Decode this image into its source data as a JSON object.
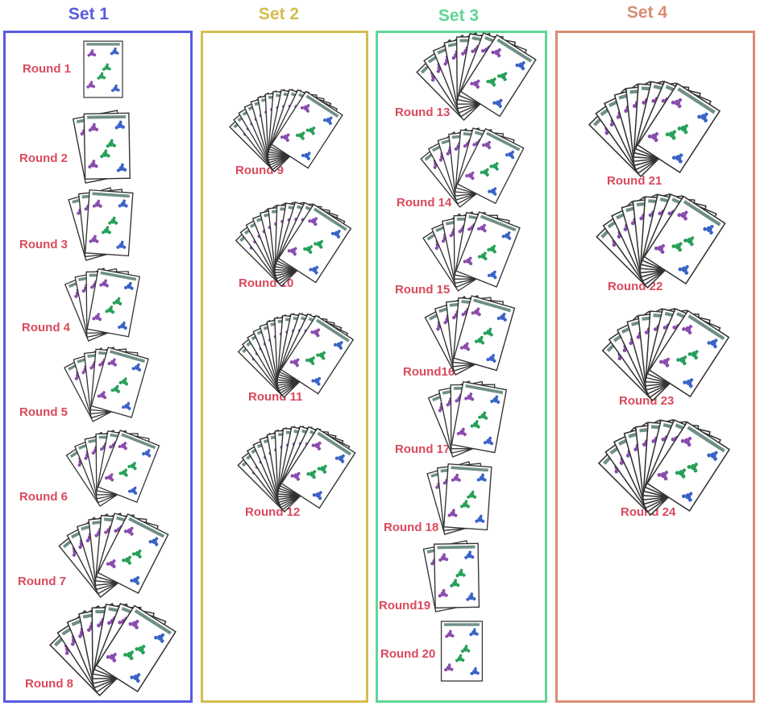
{
  "colors": {
    "label": "#d94a5c",
    "card_border": "#333333",
    "card_fill": "#ffffff",
    "card_strip": "#6f8f86",
    "purple": "#8a4cae",
    "blue": "#3a63c8",
    "green": "#27a05a"
  },
  "sets": [
    {
      "title": "Set 1",
      "color": "#5a5ae0",
      "rounds": [
        {
          "label": "Round  1",
          "cards": 1
        },
        {
          "label": "Round  2",
          "cards": 2
        },
        {
          "label": "Round  3",
          "cards": 3
        },
        {
          "label": "Round  4",
          "cards": 4
        },
        {
          "label": "Round 5",
          "cards": 5
        },
        {
          "label": "Round  6",
          "cards": 6
        },
        {
          "label": "Round 7",
          "cards": 7
        },
        {
          "label": "Round 8",
          "cards": 8
        }
      ]
    },
    {
      "title": "Set 2",
      "color": "#d4bd4e",
      "rounds": [
        {
          "label": "Round 9",
          "cards": 12
        },
        {
          "label": "Round 10",
          "cards": 11
        },
        {
          "label": "Round 11",
          "cards": 12
        },
        {
          "label": "Round 12",
          "cards": 12
        }
      ]
    },
    {
      "title": "Set 3",
      "color": "#5fd696",
      "rounds": [
        {
          "label": "Round 13",
          "cards": 8
        },
        {
          "label": "Round 14",
          "cards": 7
        },
        {
          "label": "Round 15",
          "cards": 6
        },
        {
          "label": "Round16",
          "cards": 5
        },
        {
          "label": "Round 17",
          "cards": 4
        },
        {
          "label": "Round 18",
          "cards": 3
        },
        {
          "label": "Round19",
          "cards": 2
        },
        {
          "label": "Round 20",
          "cards": 1
        }
      ]
    },
    {
      "title": "Set 4",
      "color": "#d98c73",
      "rounds": [
        {
          "label": "Round 21",
          "cards": 9
        },
        {
          "label": "Round 22",
          "cards": 9
        },
        {
          "label": "Round 23",
          "cards": 9
        },
        {
          "label": "Round 24",
          "cards": 9
        }
      ]
    }
  ]
}
